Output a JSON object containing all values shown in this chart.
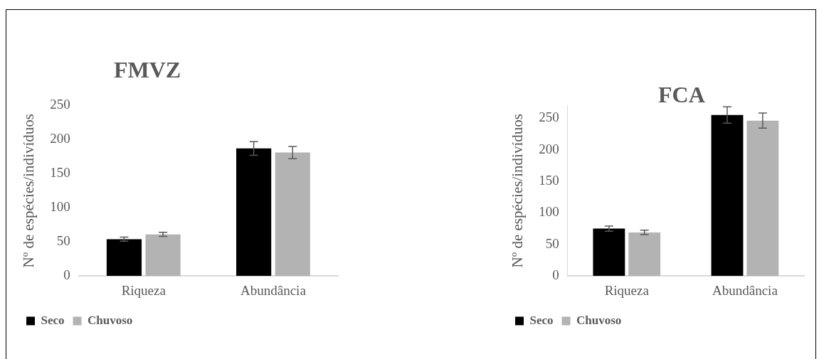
{
  "chart_data": [
    {
      "type": "bar",
      "title": "FMVZ",
      "ylabel": "Nº de espécies/indivíduos",
      "categories": [
        "Riqueza",
        "Abundância"
      ],
      "series": [
        {
          "name": "Seco",
          "color": "#000000",
          "values": [
            54,
            187
          ],
          "errors": [
            3,
            10
          ]
        },
        {
          "name": "Chuvoso",
          "color": "#b3b3b3",
          "values": [
            61,
            181
          ],
          "errors": [
            3,
            9
          ]
        }
      ],
      "ylim": [
        0,
        250
      ],
      "yticks": [
        0,
        50,
        100,
        150,
        200,
        250
      ],
      "grid": false,
      "legend": "bottom left"
    },
    {
      "type": "bar",
      "title": "FCA",
      "ylabel": "Nº de espécies/indivíduos",
      "categories": [
        "Riqueza",
        "Abundância"
      ],
      "series": [
        {
          "name": "Seco",
          "color": "#000000",
          "values": [
            75,
            255
          ],
          "errors": [
            4,
            13
          ]
        },
        {
          "name": "Chuvoso",
          "color": "#b3b3b3",
          "values": [
            69,
            246
          ],
          "errors": [
            3.5,
            12
          ]
        }
      ],
      "ylim": [
        0,
        270
      ],
      "yticks": [
        0,
        50,
        100,
        150,
        200,
        250
      ],
      "grid": false,
      "legend": "bottom left"
    }
  ]
}
